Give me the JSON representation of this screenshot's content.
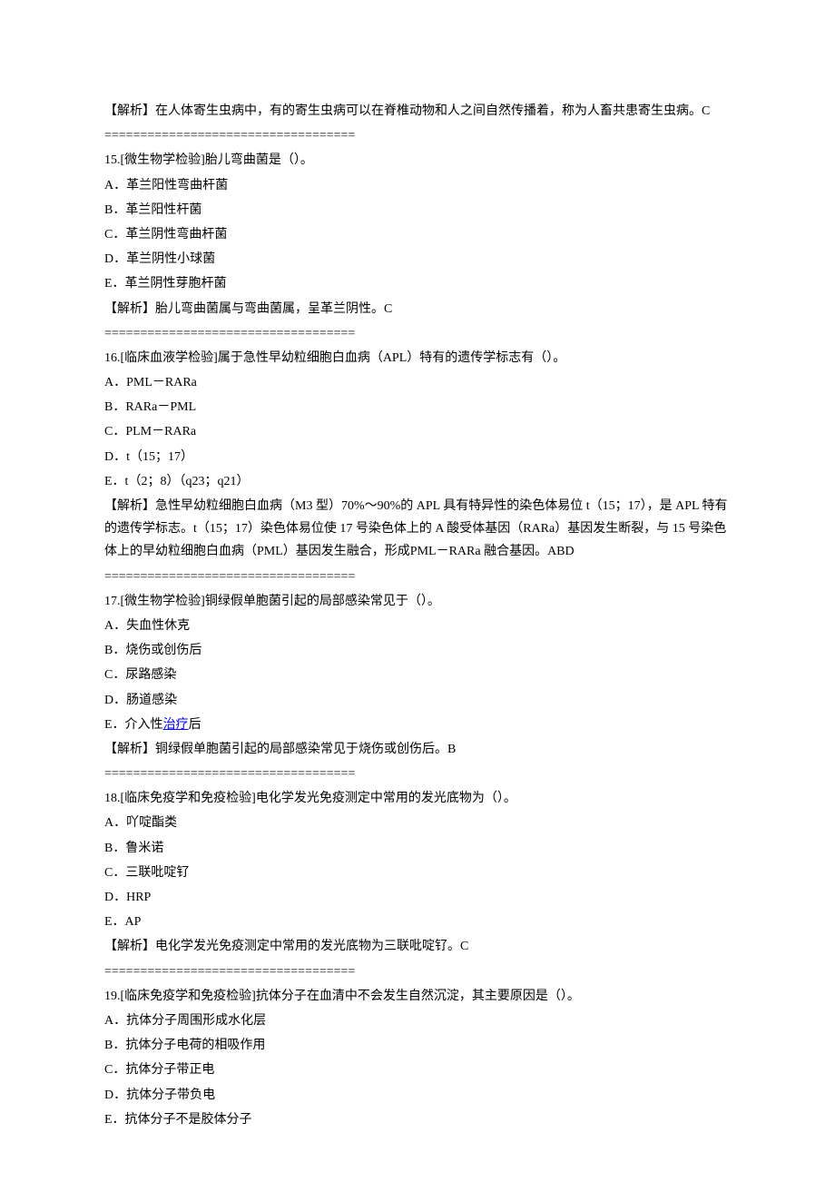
{
  "divider": "===================================",
  "intro_explanation": "【解析】在人体寄生虫病中，有的寄生虫病可以在脊椎动物和人之间自然传播着，称为人畜共患寄生虫病。C",
  "q15": {
    "title": "15.[微生物学检验]胎儿弯曲菌是（）。",
    "options": [
      "A．革兰阳性弯曲杆菌",
      "B．革兰阳性杆菌",
      "C．革兰阴性弯曲杆菌",
      "D．革兰阴性小球菌",
      "E．革兰阴性芽胞杆菌"
    ],
    "explanation": "【解析】胎儿弯曲菌属与弯曲菌属，呈革兰阴性。C"
  },
  "q16": {
    "title": "16.[临床血液学检验]属于急性早幼粒细胞白血病（APL）特有的遗传学标志有（）。",
    "options": [
      "A．PML－RARa",
      "B．RARa－PML",
      "C．PLM－RARa",
      "D．t（15；17）",
      "E．t（2；8）（q23；q21）"
    ],
    "explanation": "【解析】急性早幼粒细胞白血病（M3 型）70%～90%的 APL 具有特异性的染色体易位 t（15；17），是 APL 特有的遗传学标志。t（15；17）染色体易位使 17 号染色体上的 A 酸受体基因（RARa）基因发生断裂，与 15 号染色体上的早幼粒细胞白血病（PML）基因发生融合，形成PML－RARa 融合基因。ABD"
  },
  "q17": {
    "title": "17.[微生物学检验]铜绿假单胞菌引起的局部感染常见于（）。",
    "options": [
      "A．失血性休克",
      "B．烧伤或创伤后",
      "C．尿路感染",
      "D．肠道感染"
    ],
    "option_e_prefix": "E．介入性",
    "option_e_link": "治疗",
    "option_e_suffix": "后",
    "explanation": "【解析】铜绿假单胞菌引起的局部感染常见于烧伤或创伤后。B"
  },
  "q18": {
    "title": "18.[临床免疫学和免疫检验]电化学发光免疫测定中常用的发光底物为（）。",
    "options": [
      "A．吖啶酯类",
      "B．鲁米诺",
      "C．三联吡啶钌",
      "D．HRP",
      "E．AP"
    ],
    "explanation": "【解析】电化学发光免疫测定中常用的发光底物为三联吡啶钌。C"
  },
  "q19": {
    "title": "19.[临床免疫学和免疫检验]抗体分子在血清中不会发生自然沉淀，其主要原因是（）。",
    "options": [
      "A．抗体分子周围形成水化层",
      "B．抗体分子电荷的相吸作用",
      "C．抗体分子带正电",
      "D．抗体分子带负电",
      "E．抗体分子不是胶体分子"
    ]
  }
}
